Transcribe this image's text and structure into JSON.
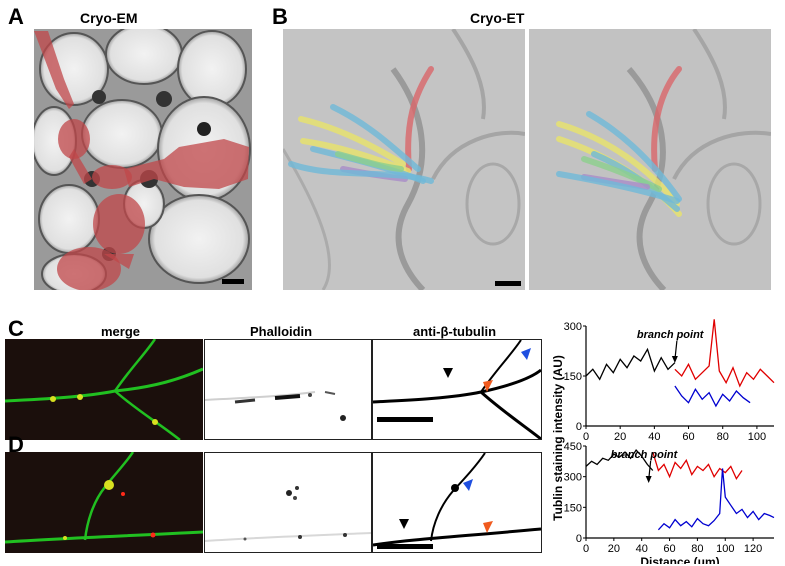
{
  "panels": {
    "A": {
      "letter": "A",
      "title": "Cryo-EM"
    },
    "B": {
      "letter": "B",
      "title": "Cryo-ET"
    },
    "C": {
      "letter": "C",
      "titles": [
        "merge",
        "Phalloidin",
        "anti-β-tubulin"
      ]
    },
    "D": {
      "letter": "D"
    }
  },
  "colors": {
    "overlay_red": "#c0474a",
    "filament_yellow": "#e8e46a",
    "filament_blue": "#6fb9d8",
    "filament_green": "#8ccf8c",
    "filament_purple": "#a98cc8",
    "filament_red": "#d9666a",
    "actin_red": "#ff2a1a",
    "tubulin_green": "#21c021",
    "arrow_black": "#000000",
    "arrow_blue": "#1f4fe0",
    "arrow_orange": "#f05a1e"
  },
  "arrows": {
    "black": "black-arrowhead",
    "blue": "blue-arrowhead",
    "orange": "orange-arrowhead"
  },
  "chart_data": [
    {
      "type": "line",
      "title": "",
      "annotation": "branch point",
      "xlabel": "",
      "ylabel": "Tublin staining intensity (AU)",
      "xlim": [
        0,
        110
      ],
      "ylim": [
        0,
        300
      ],
      "xticks": [
        "0",
        "20",
        "40",
        "60",
        "80",
        "100"
      ],
      "yticks": [
        "0",
        "150",
        "300"
      ],
      "branch_x": 52,
      "series": [
        {
          "color": "#000000",
          "x": [
            0,
            4,
            8,
            12,
            16,
            20,
            24,
            28,
            32,
            36,
            40,
            44,
            48,
            52
          ],
          "y": [
            150,
            170,
            140,
            185,
            160,
            200,
            175,
            210,
            195,
            230,
            165,
            205,
            170,
            190
          ]
        },
        {
          "color": "#e00000",
          "x": [
            52,
            56,
            60,
            64,
            68,
            72,
            75,
            78,
            82,
            86,
            90,
            94,
            98,
            102,
            106,
            110
          ],
          "y": [
            170,
            150,
            185,
            140,
            160,
            180,
            320,
            165,
            130,
            175,
            120,
            160,
            140,
            170,
            150,
            130
          ]
        },
        {
          "color": "#0000d0",
          "x": [
            52,
            56,
            60,
            64,
            68,
            72,
            76,
            80,
            84,
            88,
            92,
            96
          ],
          "y": [
            120,
            90,
            70,
            110,
            80,
            100,
            60,
            95,
            75,
            105,
            85,
            70
          ]
        }
      ]
    },
    {
      "type": "line",
      "title": "",
      "annotation": "branch point",
      "xlabel": "Distance (μm)",
      "ylabel": "",
      "xlim": [
        0,
        135
      ],
      "ylim": [
        0,
        450
      ],
      "xticks": [
        "0",
        "20",
        "40",
        "60",
        "80",
        "100",
        "120"
      ],
      "yticks": [
        "0",
        "150",
        "300",
        "450"
      ],
      "branch_x": 45,
      "series": [
        {
          "color": "#000000",
          "x": [
            0,
            4,
            8,
            12,
            16,
            20,
            24,
            28,
            32,
            36,
            40,
            44,
            48
          ],
          "y": [
            350,
            375,
            360,
            390,
            380,
            410,
            395,
            420,
            390,
            430,
            400,
            360,
            330
          ]
        },
        {
          "color": "#e00000",
          "x": [
            48,
            52,
            56,
            60,
            64,
            68,
            72,
            76,
            80,
            84,
            88,
            92,
            96,
            100,
            104,
            108,
            112
          ],
          "y": [
            420,
            330,
            360,
            300,
            370,
            340,
            380,
            310,
            350,
            330,
            360,
            300,
            340,
            320,
            350,
            290,
            330
          ]
        },
        {
          "color": "#0000d0",
          "x": [
            52,
            56,
            60,
            64,
            68,
            72,
            76,
            80,
            84,
            88,
            92,
            96,
            98,
            100,
            104,
            108,
            112,
            116,
            120,
            124,
            128,
            132,
            135
          ],
          "y": [
            40,
            70,
            50,
            90,
            60,
            80,
            55,
            95,
            70,
            60,
            85,
            120,
            340,
            200,
            160,
            120,
            140,
            100,
            130,
            90,
            120,
            110,
            100
          ]
        }
      ]
    }
  ]
}
